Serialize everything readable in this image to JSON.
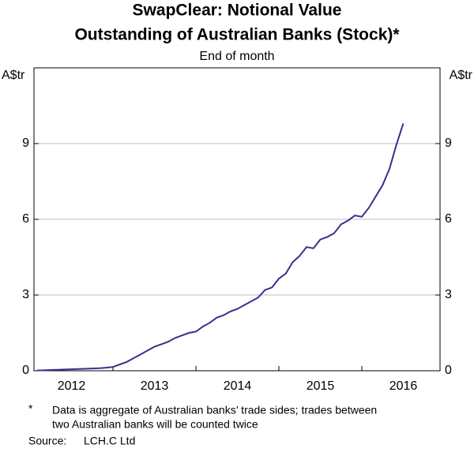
{
  "chart_data": {
    "type": "line",
    "title": [
      "SwapClear: Notional Value",
      "Outstanding of Australian Banks (Stock)*"
    ],
    "subtitle": "End of month",
    "y_label": "A$tr",
    "y2_label": "A$tr",
    "xlabels": [
      "2012",
      "2013",
      "2014",
      "2015",
      "2016"
    ],
    "series": [
      {
        "color": "#3b2f8c",
        "values": [
          0.01,
          0.02,
          0.03,
          0.04,
          0.05,
          0.06,
          0.07,
          0.08,
          0.09,
          0.1,
          0.12,
          0.15,
          0.25,
          0.35,
          0.5,
          0.65,
          0.8,
          0.95,
          1.05,
          1.15,
          1.3,
          1.4,
          1.5,
          1.55,
          1.75,
          1.9,
          2.1,
          2.2,
          2.35,
          2.45,
          2.6,
          2.75,
          2.9,
          3.2,
          3.3,
          3.65,
          3.85,
          4.3,
          4.55,
          4.9,
          4.85,
          5.2,
          5.3,
          5.45,
          5.8,
          5.95,
          6.15,
          6.1,
          6.45,
          6.9,
          7.35,
          8.0,
          8.95,
          9.8
        ]
      }
    ],
    "ylim": [
      0,
      12
    ],
    "yticks": [
      0,
      3,
      6,
      9
    ],
    "y2lim": [
      0,
      12
    ],
    "y2ticks": [
      0,
      3,
      6,
      9
    ],
    "grid": true,
    "footnote": {
      "marker": "*",
      "text": [
        "Data is aggregate of Australian banks’ trade sides; trades between",
        "two Australian banks will be counted twice"
      ]
    },
    "source": {
      "label": "Source:",
      "text": "LCH.C Ltd"
    }
  }
}
